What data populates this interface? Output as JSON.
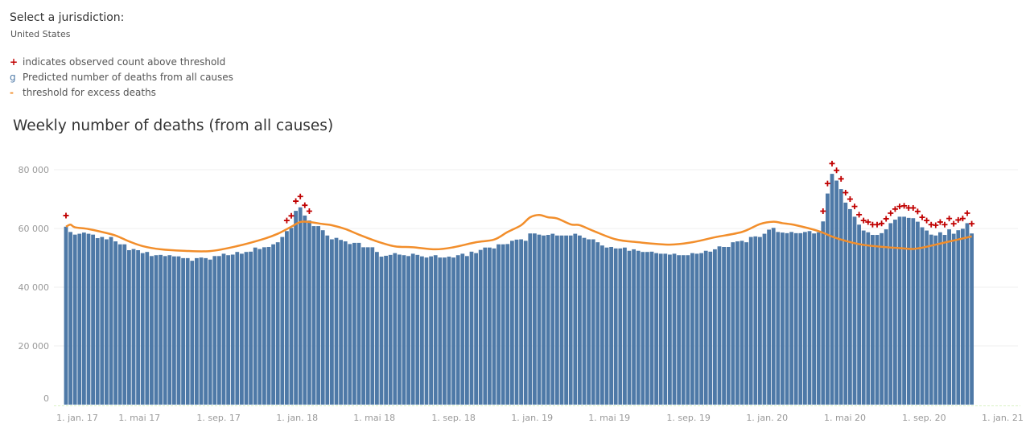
{
  "jurisdiction": {
    "label": "Select a jurisdiction:",
    "value": "United States"
  },
  "legend": [
    {
      "symbol": "+",
      "label": "indicates observed count above threshold",
      "color": "#c00000"
    },
    {
      "symbol": "g",
      "label": "Predicted number of deaths from all causes",
      "color": "#4e79a7"
    },
    {
      "symbol": "-",
      "label": "threshold for excess deaths",
      "color": "#f28e2b"
    }
  ],
  "chart_data": {
    "type": "bar",
    "title": "Weekly number of deaths (from all causes)",
    "xlabel": "",
    "ylabel": "",
    "ylim": [
      0,
      85000
    ],
    "grid": true,
    "y_ticks": [
      {
        "value": 0,
        "label": "0"
      },
      {
        "value": 20000,
        "label": "20 000"
      },
      {
        "value": 40000,
        "label": "40 000"
      },
      {
        "value": 60000,
        "label": "60 000"
      },
      {
        "value": 80000,
        "label": "80 000"
      }
    ],
    "x_ticks": [
      {
        "date": "2017-01-01",
        "label": "1. jan. 17"
      },
      {
        "date": "2017-05-01",
        "label": "1. mai 17"
      },
      {
        "date": "2017-09-01",
        "label": "1. sep. 17"
      },
      {
        "date": "2018-01-01",
        "label": "1. jan. 18"
      },
      {
        "date": "2018-05-01",
        "label": "1. mai 18"
      },
      {
        "date": "2018-09-01",
        "label": "1. sep. 18"
      },
      {
        "date": "2019-01-01",
        "label": "1. jan. 19"
      },
      {
        "date": "2019-05-01",
        "label": "1. mai 19"
      },
      {
        "date": "2019-09-01",
        "label": "1. sep. 19"
      },
      {
        "date": "2020-01-01",
        "label": "1. jan. 20"
      },
      {
        "date": "2020-05-01",
        "label": "1. mai 20"
      },
      {
        "date": "2020-09-01",
        "label": "1. sep. 20"
      },
      {
        "date": "2021-01-01",
        "label": "1. jan. 21"
      }
    ],
    "weeks": [
      "2017-01-07",
      "2017-01-14",
      "2017-01-21",
      "2017-01-28",
      "2017-02-04",
      "2017-02-11",
      "2017-02-18",
      "2017-02-25",
      "2017-03-04",
      "2017-03-11",
      "2017-03-18",
      "2017-03-25",
      "2017-04-01",
      "2017-04-08",
      "2017-04-15",
      "2017-04-22",
      "2017-04-29",
      "2017-05-06",
      "2017-05-13",
      "2017-05-20",
      "2017-05-27",
      "2017-06-03",
      "2017-06-10",
      "2017-06-17",
      "2017-06-24",
      "2017-07-01",
      "2017-07-08",
      "2017-07-15",
      "2017-07-22",
      "2017-07-29",
      "2017-08-05",
      "2017-08-12",
      "2017-08-19",
      "2017-08-26",
      "2017-09-02",
      "2017-09-09",
      "2017-09-16",
      "2017-09-23",
      "2017-09-30",
      "2017-10-07",
      "2017-10-14",
      "2017-10-21",
      "2017-10-28",
      "2017-11-04",
      "2017-11-11",
      "2017-11-18",
      "2017-11-25",
      "2017-12-02",
      "2017-12-09",
      "2017-12-16",
      "2017-12-23",
      "2017-12-30",
      "2018-01-06",
      "2018-01-13",
      "2018-01-20",
      "2018-01-27",
      "2018-02-03",
      "2018-02-10",
      "2018-02-17",
      "2018-02-24",
      "2018-03-03",
      "2018-03-10",
      "2018-03-17",
      "2018-03-24",
      "2018-03-31",
      "2018-04-07",
      "2018-04-14",
      "2018-04-21",
      "2018-04-28",
      "2018-05-05",
      "2018-05-12",
      "2018-05-19",
      "2018-05-26",
      "2018-06-02",
      "2018-06-09",
      "2018-06-16",
      "2018-06-23",
      "2018-06-30",
      "2018-07-07",
      "2018-07-14",
      "2018-07-21",
      "2018-07-28",
      "2018-08-04",
      "2018-08-11",
      "2018-08-18",
      "2018-08-25",
      "2018-09-01",
      "2018-09-08",
      "2018-09-15",
      "2018-09-22",
      "2018-09-29",
      "2018-10-06",
      "2018-10-13",
      "2018-10-20",
      "2018-10-27",
      "2018-11-03",
      "2018-11-10",
      "2018-11-17",
      "2018-11-24",
      "2018-12-01",
      "2018-12-08",
      "2018-12-15",
      "2018-12-22",
      "2018-12-29",
      "2019-01-05",
      "2019-01-12",
      "2019-01-19",
      "2019-01-26",
      "2019-02-02",
      "2019-02-09",
      "2019-02-16",
      "2019-02-23",
      "2019-03-02",
      "2019-03-09",
      "2019-03-16",
      "2019-03-23",
      "2019-03-30",
      "2019-04-06",
      "2019-04-13",
      "2019-04-20",
      "2019-04-27",
      "2019-05-04",
      "2019-05-11",
      "2019-05-18",
      "2019-05-25",
      "2019-06-01",
      "2019-06-08",
      "2019-06-15",
      "2019-06-22",
      "2019-06-29",
      "2019-07-06",
      "2019-07-13",
      "2019-07-20",
      "2019-07-27",
      "2019-08-03",
      "2019-08-10",
      "2019-08-17",
      "2019-08-24",
      "2019-08-31",
      "2019-09-07",
      "2019-09-14",
      "2019-09-21",
      "2019-09-28",
      "2019-10-05",
      "2019-10-12",
      "2019-10-19",
      "2019-10-26",
      "2019-11-02",
      "2019-11-09",
      "2019-11-16",
      "2019-11-23",
      "2019-11-30",
      "2019-12-07",
      "2019-12-14",
      "2019-12-21",
      "2019-12-28",
      "2020-01-04",
      "2020-01-11",
      "2020-01-18",
      "2020-01-25",
      "2020-02-01",
      "2020-02-08",
      "2020-02-15",
      "2020-02-22",
      "2020-02-29",
      "2020-03-07",
      "2020-03-14",
      "2020-03-21",
      "2020-03-28",
      "2020-04-04",
      "2020-04-11",
      "2020-04-18",
      "2020-04-25",
      "2020-05-02",
      "2020-05-09",
      "2020-05-16",
      "2020-05-23",
      "2020-05-30",
      "2020-06-06",
      "2020-06-13",
      "2020-06-20",
      "2020-06-27",
      "2020-07-04",
      "2020-07-11",
      "2020-07-18",
      "2020-07-25",
      "2020-08-01",
      "2020-08-08",
      "2020-08-15",
      "2020-08-22",
      "2020-08-29",
      "2020-09-05",
      "2020-09-12",
      "2020-09-19",
      "2020-09-26",
      "2020-10-03",
      "2020-10-10",
      "2020-10-17",
      "2020-10-24",
      "2020-10-31",
      "2020-11-07",
      "2020-11-14"
    ],
    "series": [
      {
        "name": "Predicted number of deaths from all causes",
        "type": "bar",
        "color": "#4e79a7",
        "values": [
          60600,
          58800,
          57900,
          58200,
          58600,
          58200,
          57900,
          56700,
          57100,
          56300,
          57100,
          55600,
          54600,
          54600,
          52600,
          53000,
          52600,
          51600,
          52000,
          50600,
          50900,
          51000,
          50600,
          50900,
          50500,
          50500,
          49900,
          49900,
          49000,
          49900,
          50100,
          49900,
          49400,
          50600,
          50600,
          51400,
          50900,
          51100,
          52000,
          51400,
          52000,
          52100,
          53500,
          53000,
          53600,
          53700,
          54600,
          55300,
          57100,
          59100,
          60200,
          66000,
          67200,
          64400,
          62700,
          60800,
          60800,
          59400,
          57600,
          56300,
          56800,
          56100,
          55600,
          54700,
          55100,
          55100,
          53600,
          53600,
          53600,
          52000,
          50400,
          50700,
          51000,
          51600,
          51100,
          50900,
          50600,
          51400,
          51000,
          50500,
          50100,
          50500,
          50900,
          50100,
          50100,
          50400,
          50100,
          50900,
          51400,
          50600,
          52100,
          51600,
          52700,
          53500,
          53500,
          53200,
          54600,
          54600,
          54700,
          55800,
          56200,
          56300,
          55800,
          58300,
          58300,
          57900,
          57600,
          57800,
          58200,
          57600,
          57600,
          57600,
          57600,
          58200,
          57600,
          56800,
          56300,
          56300,
          55300,
          54200,
          53500,
          53700,
          53200,
          53200,
          53500,
          52400,
          52900,
          52400,
          52000,
          52000,
          52100,
          51600,
          51400,
          51400,
          51100,
          51400,
          50900,
          50900,
          50900,
          51600,
          51400,
          51600,
          52400,
          52100,
          52900,
          53900,
          53700,
          53700,
          55300,
          55600,
          55800,
          55300,
          57100,
          57300,
          57100,
          58200,
          59600,
          60200,
          58800,
          58600,
          58400,
          58800,
          58400,
          58400,
          58800,
          59100,
          58300,
          58700,
          62400,
          71900,
          78600,
          76300,
          73400,
          68800,
          66600,
          64000,
          61300,
          59300,
          58700,
          57800,
          57800,
          58400,
          59700,
          61800,
          63000,
          64000,
          64000,
          63600,
          63500,
          62300,
          60400,
          59300,
          57900,
          57600,
          58700,
          57800,
          59700,
          58200,
          59400,
          59900,
          61800,
          58300
        ]
      },
      {
        "name": "threshold for excess deaths",
        "type": "line",
        "color": "#f28e2b",
        "points": [
          [
            "2017-01-07",
            60600
          ],
          [
            "2017-01-14",
            61300
          ],
          [
            "2017-01-21",
            60400
          ],
          [
            "2017-02-11",
            59800
          ],
          [
            "2017-03-04",
            58800
          ],
          [
            "2017-03-25",
            57600
          ],
          [
            "2017-04-15",
            55600
          ],
          [
            "2017-05-06",
            54000
          ],
          [
            "2017-06-03",
            52900
          ],
          [
            "2017-07-08",
            52400
          ],
          [
            "2017-08-19",
            52300
          ],
          [
            "2017-09-30",
            54000
          ],
          [
            "2017-11-11",
            56500
          ],
          [
            "2017-12-02",
            58200
          ],
          [
            "2017-12-23",
            60600
          ],
          [
            "2018-01-06",
            62200
          ],
          [
            "2018-01-20",
            62200
          ],
          [
            "2018-02-10",
            61500
          ],
          [
            "2018-02-24",
            61100
          ],
          [
            "2018-03-17",
            59800
          ],
          [
            "2018-04-07",
            57900
          ],
          [
            "2018-05-05",
            55600
          ],
          [
            "2018-06-02",
            53900
          ],
          [
            "2018-06-30",
            53600
          ],
          [
            "2018-08-04",
            52900
          ],
          [
            "2018-09-01",
            53600
          ],
          [
            "2018-10-06",
            55300
          ],
          [
            "2018-11-03",
            56200
          ],
          [
            "2018-11-24",
            58800
          ],
          [
            "2018-12-15",
            61100
          ],
          [
            "2018-12-29",
            63800
          ],
          [
            "2019-01-12",
            64600
          ],
          [
            "2019-01-26",
            63800
          ],
          [
            "2019-02-09",
            63400
          ],
          [
            "2019-03-02",
            61400
          ],
          [
            "2019-03-16",
            61100
          ],
          [
            "2019-04-06",
            59200
          ],
          [
            "2019-05-11",
            56300
          ],
          [
            "2019-06-15",
            55300
          ],
          [
            "2019-08-03",
            54500
          ],
          [
            "2019-09-07",
            55300
          ],
          [
            "2019-10-12",
            57000
          ],
          [
            "2019-11-23",
            58800
          ],
          [
            "2019-12-21",
            61500
          ],
          [
            "2020-01-11",
            62300
          ],
          [
            "2020-01-25",
            61800
          ],
          [
            "2020-02-15",
            61100
          ],
          [
            "2020-03-21",
            59100
          ],
          [
            "2020-04-18",
            56700
          ],
          [
            "2020-05-30",
            54400
          ],
          [
            "2020-08-01",
            53200
          ],
          [
            "2020-08-22",
            53200
          ],
          [
            "2020-10-03",
            55200
          ],
          [
            "2020-11-14",
            57300
          ]
        ]
      },
      {
        "name": "indicates observed count above threshold",
        "type": "scatter",
        "marker": "+",
        "color": "#c00000",
        "points": [
          [
            "2017-01-07",
            64400
          ],
          [
            "2017-12-16",
            62700
          ],
          [
            "2017-12-23",
            64300
          ],
          [
            "2017-12-30",
            69300
          ],
          [
            "2018-01-06",
            70900
          ],
          [
            "2018-01-13",
            67900
          ],
          [
            "2018-01-20",
            65900
          ],
          [
            "2020-03-28",
            65900
          ],
          [
            "2020-04-04",
            75300
          ],
          [
            "2020-04-11",
            82100
          ],
          [
            "2020-04-18",
            79800
          ],
          [
            "2020-04-25",
            76900
          ],
          [
            "2020-05-02",
            72200
          ],
          [
            "2020-05-09",
            70000
          ],
          [
            "2020-05-16",
            67500
          ],
          [
            "2020-05-23",
            64700
          ],
          [
            "2020-05-30",
            62700
          ],
          [
            "2020-06-06",
            62200
          ],
          [
            "2020-06-13",
            61300
          ],
          [
            "2020-06-20",
            61300
          ],
          [
            "2020-06-27",
            61700
          ],
          [
            "2020-07-04",
            63300
          ],
          [
            "2020-07-11",
            65200
          ],
          [
            "2020-07-18",
            66600
          ],
          [
            "2020-07-25",
            67500
          ],
          [
            "2020-08-01",
            67700
          ],
          [
            "2020-08-08",
            67000
          ],
          [
            "2020-08-15",
            67000
          ],
          [
            "2020-08-22",
            65800
          ],
          [
            "2020-08-29",
            63800
          ],
          [
            "2020-09-05",
            62700
          ],
          [
            "2020-09-12",
            61300
          ],
          [
            "2020-09-19",
            61100
          ],
          [
            "2020-09-26",
            62200
          ],
          [
            "2020-10-03",
            61300
          ],
          [
            "2020-10-10",
            63400
          ],
          [
            "2020-10-17",
            61600
          ],
          [
            "2020-10-24",
            62900
          ],
          [
            "2020-10-31",
            63400
          ],
          [
            "2020-11-07",
            65200
          ],
          [
            "2020-11-14",
            61600
          ]
        ]
      }
    ]
  }
}
